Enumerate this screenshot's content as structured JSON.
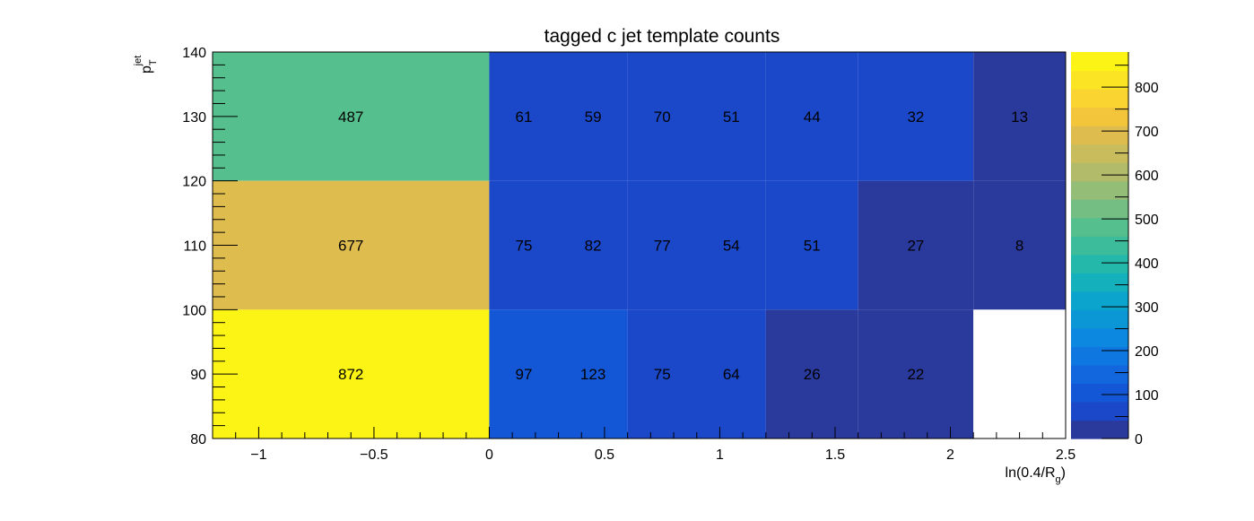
{
  "chart_data": {
    "type": "heatmap",
    "title": "tagged c jet template counts",
    "xlabel": {
      "main": "ln(0.4/R",
      "sub": "g",
      "close": ")"
    },
    "ylabel": {
      "main": "p",
      "sub": "T",
      "sup": "jet"
    },
    "xlim": [
      -1.2,
      2.5
    ],
    "ylim": [
      80,
      140
    ],
    "x_ticks": [
      {
        "value": -1,
        "label": "−1"
      },
      {
        "value": -0.5,
        "label": "−0.5"
      },
      {
        "value": 0,
        "label": "0"
      },
      {
        "value": 0.5,
        "label": "0.5"
      },
      {
        "value": 1,
        "label": "1"
      },
      {
        "value": 1.5,
        "label": "1.5"
      },
      {
        "value": 2,
        "label": "2"
      },
      {
        "value": 2.5,
        "label": "2.5"
      }
    ],
    "y_ticks": [
      {
        "value": 80,
        "label": "80"
      },
      {
        "value": 90,
        "label": "90"
      },
      {
        "value": 100,
        "label": "100"
      },
      {
        "value": 110,
        "label": "110"
      },
      {
        "value": 120,
        "label": "120"
      },
      {
        "value": 130,
        "label": "130"
      },
      {
        "value": 140,
        "label": "140"
      }
    ],
    "x_bin_edges": [
      -1.2,
      0.0,
      0.6,
      1.2,
      1.6,
      2.1,
      2.5
    ],
    "y_bin_edges": [
      80,
      100,
      120,
      140
    ],
    "bins": [
      {
        "x": [
          -1.2,
          0.0
        ],
        "y": [
          120,
          140
        ],
        "value": 487
      },
      {
        "x": [
          0.0,
          0.6
        ],
        "y": [
          120,
          140
        ],
        "value": 61
      },
      {
        "x": [
          0.6,
          1.2
        ],
        "y": [
          120,
          140
        ],
        "value": 59
      },
      {
        "x": [
          1.2,
          1.6
        ],
        "y": [
          120,
          140
        ],
        "value": 70
      },
      {
        "x": [
          1.6,
          2.1
        ],
        "y": [
          120,
          140
        ],
        "value": 51
      },
      {
        "x": [
          2.1,
          2.5
        ],
        "y": [
          120,
          140
        ],
        "value": 13
      },
      {
        "x": [
          -1.2,
          0.0
        ],
        "y": [
          100,
          120
        ],
        "value": 677
      },
      {
        "x": [
          0.0,
          0.6
        ],
        "y": [
          100,
          120
        ],
        "value": 75
      },
      {
        "x": [
          0.6,
          1.2
        ],
        "y": [
          100,
          120
        ],
        "value": 82
      },
      {
        "x": [
          1.2,
          1.6
        ],
        "y": [
          100,
          120
        ],
        "value": 77
      },
      {
        "x": [
          1.6,
          2.1
        ],
        "y": [
          100,
          120
        ],
        "value": 27
      },
      {
        "x": [
          2.1,
          2.5
        ],
        "y": [
          100,
          120
        ],
        "value": 8
      },
      {
        "x": [
          -1.2,
          0.0
        ],
        "y": [
          80,
          100
        ],
        "value": 872
      },
      {
        "x": [
          0.0,
          0.6
        ],
        "y": [
          80,
          100
        ],
        "value": 123
      },
      {
        "x": [
          0.6,
          1.2
        ],
        "y": [
          80,
          100
        ],
        "value": 75
      },
      {
        "x": [
          1.2,
          1.6
        ],
        "y": [
          80,
          100
        ],
        "value": 26
      },
      {
        "x": [
          1.6,
          2.1
        ],
        "y": [
          80,
          100
        ],
        "value": 22
      },
      {
        "x": [
          2.1,
          2.5
        ],
        "y": [
          80,
          100
        ],
        "value": 0
      }
    ],
    "labels": [
      {
        "x": -0.6,
        "y": 130,
        "text": "487"
      },
      {
        "x": 0.15,
        "y": 130,
        "text": "61"
      },
      {
        "x": 0.45,
        "y": 130,
        "text": "59"
      },
      {
        "x": 0.75,
        "y": 130,
        "text": "70"
      },
      {
        "x": 1.05,
        "y": 130,
        "text": "51"
      },
      {
        "x": 1.4,
        "y": 130,
        "text": "44"
      },
      {
        "x": 1.85,
        "y": 130,
        "text": "32"
      },
      {
        "x": 2.3,
        "y": 130,
        "text": "13"
      },
      {
        "x": -0.6,
        "y": 110,
        "text": "677"
      },
      {
        "x": 0.15,
        "y": 110,
        "text": "75"
      },
      {
        "x": 0.45,
        "y": 110,
        "text": "82"
      },
      {
        "x": 0.75,
        "y": 110,
        "text": "77"
      },
      {
        "x": 1.05,
        "y": 110,
        "text": "54"
      },
      {
        "x": 1.4,
        "y": 110,
        "text": "51"
      },
      {
        "x": 1.85,
        "y": 110,
        "text": "27"
      },
      {
        "x": 2.3,
        "y": 110,
        "text": "8"
      },
      {
        "x": -0.6,
        "y": 90,
        "text": "872"
      },
      {
        "x": 0.15,
        "y": 90,
        "text": "97"
      },
      {
        "x": 0.45,
        "y": 90,
        "text": "123"
      },
      {
        "x": 0.75,
        "y": 90,
        "text": "75"
      },
      {
        "x": 1.05,
        "y": 90,
        "text": "64"
      },
      {
        "x": 1.4,
        "y": 90,
        "text": "26"
      },
      {
        "x": 1.85,
        "y": 90,
        "text": "22"
      }
    ],
    "colorbar": {
      "range": [
        0,
        880
      ],
      "ticks": [
        {
          "value": 0,
          "label": "0"
        },
        {
          "value": 100,
          "label": "100"
        },
        {
          "value": 200,
          "label": "200"
        },
        {
          "value": 300,
          "label": "300"
        },
        {
          "value": 400,
          "label": "400"
        },
        {
          "value": 500,
          "label": "500"
        },
        {
          "value": 600,
          "label": "600"
        },
        {
          "value": 700,
          "label": "700"
        },
        {
          "value": 800,
          "label": "800"
        }
      ],
      "palette": [
        "#2a3a9c",
        "#1a48c8",
        "#1457d6",
        "#1367de",
        "#0e78e0",
        "#0d88e0",
        "#0b97d5",
        "#0ba4cc",
        "#14b0bc",
        "#24b8ab",
        "#3cbc9a",
        "#56bf8e",
        "#74bd83",
        "#94bd78",
        "#b1bb6a",
        "#c9bc5c",
        "#dfbc4e",
        "#f2c53a",
        "#fad430",
        "#fbe423",
        "#fbf414"
      ]
    }
  }
}
